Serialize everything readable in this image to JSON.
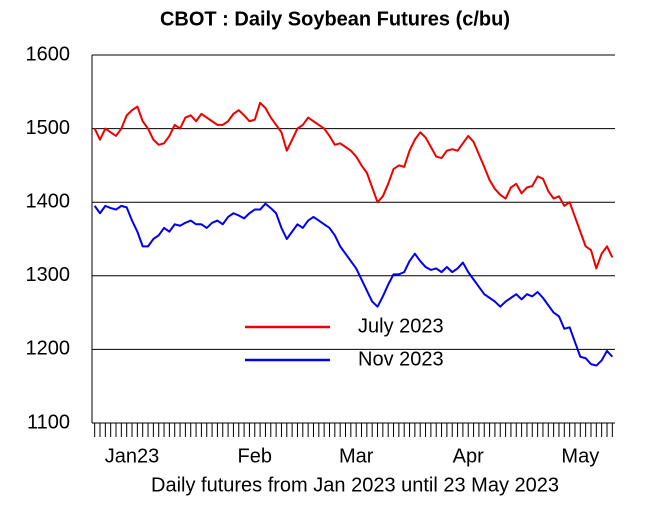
{
  "chart_data": {
    "type": "line",
    "title": "CBOT : Daily Soybean Futures (c/bu)",
    "xlabel": "Daily futures from Jan 2023 until 23 May 2023",
    "categories": [
      null,
      null,
      null,
      null,
      null,
      null,
      null,
      "Jan23",
      null,
      null,
      null,
      null,
      null,
      null,
      null,
      null,
      null,
      null,
      null,
      null,
      null,
      null,
      null,
      null,
      null,
      null,
      null,
      null,
      null,
      null,
      "Feb",
      null,
      null,
      null,
      null,
      null,
      null,
      null,
      null,
      null,
      null,
      null,
      null,
      null,
      null,
      null,
      null,
      null,
      null,
      "Mar",
      null,
      null,
      null,
      null,
      null,
      null,
      null,
      null,
      null,
      null,
      null,
      null,
      null,
      null,
      null,
      null,
      null,
      null,
      null,
      null,
      "Apr",
      null,
      null,
      null,
      null,
      null,
      null,
      null,
      null,
      null,
      null,
      null,
      null,
      null,
      null,
      null,
      null,
      null,
      null,
      null,
      null,
      "May",
      null,
      null,
      null,
      null,
      null,
      null
    ],
    "series": [
      {
        "name": "July 2023",
        "color": "#ee0000",
        "values": [
          1500,
          1485,
          1500,
          1495,
          1490,
          1500,
          1518,
          1525,
          1530,
          1510,
          1500,
          1485,
          1478,
          1480,
          1490,
          1505,
          1500,
          1515,
          1518,
          1510,
          1520,
          1515,
          1510,
          1505,
          1505,
          1510,
          1520,
          1525,
          1518,
          1510,
          1512,
          1535,
          1528,
          1515,
          1505,
          1495,
          1470,
          1485,
          1500,
          1505,
          1515,
          1510,
          1505,
          1500,
          1490,
          1478,
          1480,
          1475,
          1470,
          1462,
          1450,
          1440,
          1420,
          1400,
          1408,
          1425,
          1445,
          1450,
          1448,
          1470,
          1485,
          1495,
          1488,
          1475,
          1462,
          1460,
          1470,
          1472,
          1470,
          1480,
          1490,
          1482,
          1465,
          1448,
          1430,
          1418,
          1410,
          1405,
          1420,
          1425,
          1412,
          1420,
          1422,
          1435,
          1432,
          1415,
          1405,
          1408,
          1395,
          1400,
          1380,
          1360,
          1340,
          1335,
          1310,
          1330,
          1340,
          1325
        ]
      },
      {
        "name": "Nov 2023",
        "color": "#0000ee",
        "values": [
          1395,
          1385,
          1395,
          1392,
          1390,
          1395,
          1393,
          1375,
          1360,
          1340,
          1340,
          1350,
          1355,
          1365,
          1360,
          1370,
          1368,
          1372,
          1375,
          1370,
          1370,
          1365,
          1372,
          1375,
          1370,
          1380,
          1385,
          1382,
          1378,
          1385,
          1390,
          1390,
          1398,
          1392,
          1385,
          1365,
          1350,
          1360,
          1370,
          1365,
          1375,
          1380,
          1375,
          1370,
          1365,
          1355,
          1340,
          1330,
          1320,
          1310,
          1295,
          1280,
          1265,
          1258,
          1272,
          1288,
          1302,
          1302,
          1305,
          1320,
          1330,
          1320,
          1312,
          1308,
          1310,
          1305,
          1312,
          1305,
          1310,
          1318,
          1305,
          1295,
          1285,
          1275,
          1270,
          1265,
          1258,
          1265,
          1270,
          1275,
          1268,
          1275,
          1272,
          1278,
          1270,
          1260,
          1250,
          1245,
          1228,
          1230,
          1210,
          1190,
          1188,
          1180,
          1178,
          1185,
          1198,
          1190
        ]
      }
    ],
    "ylim": [
      1100,
      1600
    ],
    "yticks": [
      1100,
      1200,
      1300,
      1400,
      1500,
      1600
    ],
    "grid": true
  }
}
